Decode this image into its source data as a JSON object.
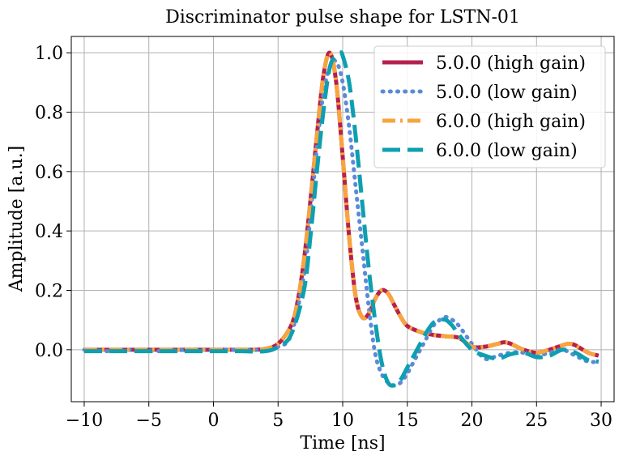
{
  "chart_data": {
    "type": "line",
    "title": "Discriminator pulse shape for LSTN-01",
    "xlabel": "Time [ns]",
    "ylabel": "Amplitude [a.u.]",
    "xlim": [
      -11.0,
      31.0
    ],
    "ylim": [
      -0.175,
      1.055
    ],
    "xticks": [
      -10,
      -5,
      0,
      5,
      10,
      15,
      20,
      25,
      30
    ],
    "xtick_labels": [
      "−10",
      "−5",
      "0",
      "5",
      "10",
      "15",
      "20",
      "25",
      "30"
    ],
    "yticks": [
      0.0,
      0.2,
      0.4,
      0.6,
      0.8,
      1.0
    ],
    "ytick_labels": [
      "0.0",
      "0.2",
      "0.4",
      "0.6",
      "0.8",
      "1.0"
    ],
    "grid": true,
    "legend_position": "top-right",
    "series": [
      {
        "name": "5.0.0 (high gain)",
        "color": "#b5204f",
        "style": "solid",
        "x": [
          -10,
          -5,
          0,
          3,
          4,
          5,
          6,
          6.5,
          7,
          7.5,
          8,
          8.5,
          9,
          9.5,
          10,
          10.5,
          11,
          11.5,
          12,
          12.5,
          13,
          13.5,
          14,
          14.5,
          15,
          16,
          17,
          18,
          19,
          20,
          21,
          22,
          22.5,
          23,
          24,
          25,
          26,
          27,
          27.5,
          28,
          29,
          29.8
        ],
        "y": [
          0.0,
          0.0,
          0.0,
          0.0,
          0.003,
          0.02,
          0.08,
          0.16,
          0.3,
          0.5,
          0.72,
          0.92,
          1.0,
          0.9,
          0.65,
          0.38,
          0.18,
          0.11,
          0.12,
          0.17,
          0.2,
          0.19,
          0.15,
          0.11,
          0.08,
          0.06,
          0.05,
          0.045,
          0.04,
          0.01,
          0.01,
          0.02,
          0.025,
          0.02,
          0.0,
          -0.01,
          0.0,
          0.015,
          0.02,
          0.015,
          -0.01,
          -0.02
        ]
      },
      {
        "name": "5.0.0 (low gain)",
        "color": "#5b8ad6",
        "style": "dotted",
        "x": [
          -10,
          -8,
          -6,
          -4,
          -2,
          0,
          2,
          4,
          5,
          6,
          7,
          7.5,
          8,
          8.5,
          9,
          9.5,
          10,
          10.5,
          11,
          11.5,
          12,
          12.5,
          13,
          13.5,
          14,
          14.5,
          15,
          15.5,
          16,
          16.5,
          17,
          17.5,
          18,
          18.5,
          19,
          20,
          21,
          22,
          23,
          24,
          25,
          26,
          27,
          28,
          29,
          29.8
        ],
        "y": [
          0.0,
          -0.005,
          0.0,
          -0.005,
          0.0,
          0.0,
          0.0,
          0.0,
          0.01,
          0.05,
          0.25,
          0.45,
          0.68,
          0.86,
          0.95,
          0.97,
          0.9,
          0.75,
          0.55,
          0.35,
          0.15,
          -0.01,
          -0.08,
          -0.11,
          -0.12,
          -0.11,
          -0.08,
          -0.04,
          0.0,
          0.04,
          0.08,
          0.1,
          0.11,
          0.1,
          0.08,
          0.02,
          -0.03,
          -0.02,
          -0.01,
          -0.01,
          -0.02,
          -0.01,
          0.0,
          -0.02,
          -0.04,
          -0.04
        ]
      },
      {
        "name": "6.0.0 (high gain)",
        "color": "#f8a43f",
        "style": "dashdot",
        "x": [
          -10,
          -5,
          0,
          3,
          4,
          5,
          6,
          6.5,
          7,
          7.5,
          8,
          8.5,
          9,
          9.5,
          10,
          10.5,
          11,
          11.5,
          12,
          12.5,
          13,
          13.5,
          14,
          14.5,
          15,
          16,
          17,
          18,
          19,
          20,
          21,
          22,
          22.5,
          23,
          24,
          25,
          26,
          27,
          27.5,
          28,
          29,
          29.8
        ],
        "y": [
          0.0,
          0.0,
          0.0,
          0.0,
          0.003,
          0.02,
          0.08,
          0.16,
          0.3,
          0.5,
          0.72,
          0.92,
          1.0,
          0.9,
          0.65,
          0.38,
          0.18,
          0.11,
          0.12,
          0.17,
          0.2,
          0.19,
          0.15,
          0.11,
          0.08,
          0.06,
          0.05,
          0.045,
          0.04,
          0.01,
          0.01,
          0.02,
          0.025,
          0.02,
          0.0,
          -0.01,
          0.0,
          0.015,
          0.02,
          0.015,
          -0.01,
          -0.02
        ]
      },
      {
        "name": "6.0.0 (low gain)",
        "color": "#0e9fb0",
        "style": "dashed",
        "x": [
          -10,
          -8,
          -6,
          -4,
          -2,
          0,
          2,
          4,
          5,
          6,
          7,
          7.5,
          8,
          8.5,
          9,
          9.5,
          9.8,
          10,
          10.5,
          11,
          11.5,
          12,
          12.5,
          13,
          13.5,
          14,
          14.5,
          15,
          15.5,
          16,
          16.5,
          17,
          17.5,
          18,
          18.5,
          19,
          20,
          21,
          22,
          23,
          24,
          25,
          26,
          27,
          28,
          29,
          29.8
        ],
        "y": [
          -0.005,
          -0.005,
          -0.005,
          -0.005,
          -0.005,
          -0.005,
          -0.005,
          -0.005,
          0.01,
          0.05,
          0.2,
          0.38,
          0.6,
          0.8,
          0.95,
          0.99,
          1.0,
          0.99,
          0.9,
          0.72,
          0.5,
          0.28,
          0.1,
          -0.04,
          -0.11,
          -0.12,
          -0.1,
          -0.06,
          -0.02,
          0.02,
          0.06,
          0.09,
          0.1,
          0.1,
          0.08,
          0.05,
          0.0,
          -0.02,
          -0.03,
          -0.015,
          -0.01,
          -0.025,
          -0.02,
          0.0,
          -0.01,
          -0.035,
          -0.04
        ]
      }
    ]
  }
}
